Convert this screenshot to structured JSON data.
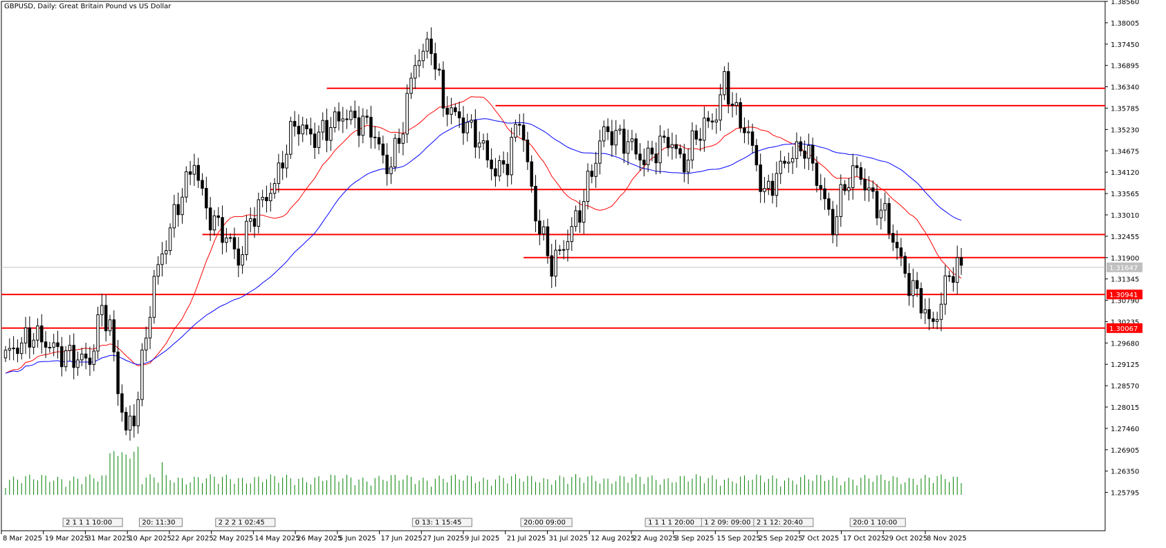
{
  "chart_data": {
    "type": "candlestick",
    "title": "GBPUSD, Daily:  Great Britain Pound vs US Dollar",
    "symbol": "GBPUSD",
    "timeframe": "Daily",
    "description": "Great Britain Pound vs US Dollar",
    "ylim": [
      1.248,
      1.3856
    ],
    "y_ticks": [
      "1.38560",
      "1.38005",
      "1.37450",
      "1.36895",
      "1.36340",
      "1.35785",
      "1.35230",
      "1.34675",
      "1.34120",
      "1.33565",
      "1.33010",
      "1.32455",
      "1.31900",
      "1.31345",
      "1.30790",
      "1.30235",
      "1.29680",
      "1.29125",
      "1.28570",
      "1.28015",
      "1.27460",
      "1.26905",
      "1.26350",
      "1.25795"
    ],
    "x_labels": [
      "8 Mar 2025",
      "19 Mar 2025",
      "31 Mar 2025",
      "10 Apr 2025",
      "22 Apr 2025",
      "2 May 2025",
      "14 May 2025",
      "26 May 2025",
      "5 Jun 2025",
      "17 Jun 2025",
      "27 Jun 2025",
      "9 Jul 2025",
      "21 Jul 2025",
      "31 Jul 2025",
      "12 Aug 2025",
      "22 Aug 2025",
      "3 Sep 2025",
      "15 Sep 2025",
      "25 Sep 2025",
      "7 Oct 2025",
      "17 Oct 2025",
      "29 Oct 2025",
      "8 Nov 2025"
    ],
    "current_price": "1.31647",
    "price_tags": [
      {
        "value": 1.30941,
        "label": "1.30941",
        "color": "#ff0000"
      },
      {
        "value": 1.30067,
        "label": "1.30067",
        "color": "#ff0000"
      },
      {
        "value": 1.31647,
        "label": "1.31647",
        "color": "#c0c0c0"
      }
    ],
    "horizontal_lines": [
      {
        "value": 1.363,
        "start_index": 80
      },
      {
        "value": 1.3585,
        "start_index": 122
      },
      {
        "value": 1.3367,
        "start_index": 66
      },
      {
        "value": 1.325,
        "start_index": 49
      },
      {
        "value": 1.319,
        "start_index": 129
      },
      {
        "value": 1.30941,
        "start_index": 0
      },
      {
        "value": 1.30067,
        "start_index": 0
      }
    ],
    "series_colors": {
      "ma_fast": "#ff0000",
      "ma_slow": "#0000ff",
      "volume": "#008000",
      "level": "#ff0000"
    },
    "time_markers": [
      {
        "index": 15,
        "text": "2 1 1 1 10:00"
      },
      {
        "index": 34,
        "text": "20: 11:30"
      },
      {
        "index": 53,
        "text": "2 2 2 1 02:45"
      },
      {
        "index": 102,
        "text": "0 13: 1 15:45"
      },
      {
        "index": 129,
        "text": "20:00 09:00"
      },
      {
        "index": 160,
        "text": "1 1 1 1 20:00"
      },
      {
        "index": 174,
        "text": "1 2 09: 09:00"
      },
      {
        "index": 187,
        "text": "2 1 12: 20:40"
      },
      {
        "index": 211,
        "text": "20:0 1 10:00"
      }
    ]
  }
}
